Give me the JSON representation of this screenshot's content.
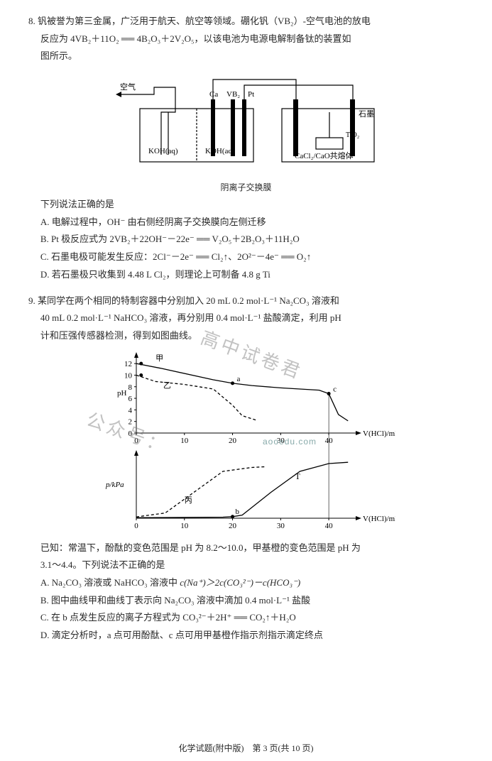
{
  "q8": {
    "num": "8.",
    "stem1": "钒被誉为第三金属，广泛用于航天、航空等领域。硼化钒（VB₂）-空气电池的放电",
    "stem2": "反应为 4VB₂＋11O₂ ══ 4B₂O₃＋2V₂O₅，以该电池为电源电解制备钛的装置如",
    "stem3": "图所示。",
    "diag": {
      "air": "空气",
      "Ca": "Ca",
      "VB2": "VB₂",
      "Pt": "Pt",
      "graphite": "石墨",
      "TiO2": "TiO₂",
      "koh": "KOH(aq)",
      "cacl2": "CaCl₂/CaO共熔体",
      "membrane": "阴离子交换膜",
      "stroke": "#000000",
      "bg": "#ffffff"
    },
    "lead": "下列说法正确的是",
    "optA": "A. 电解过程中，OH⁻ 由右侧经阴离子交换膜向左侧迁移",
    "optB": "B. Pt 极反应式为 2VB₂＋22OH⁻－22e⁻ ══ V₂O₅＋2B₂O₃＋11H₂O",
    "optC": "C. 石墨电极可能发生反应：2Cl⁻－2e⁻ ══ Cl₂↑、2O²⁻－4e⁻ ══ O₂↑",
    "optD": "D. 若石墨极只收集到 4.48 L Cl₂，则理论上可制备 4.8 g Ti"
  },
  "q9": {
    "num": "9.",
    "stem1": "某同学在两个相同的特制容器中分别加入 20 mL 0.2 mol·L⁻¹ Na₂CO₃ 溶液和",
    "stem2": "40 mL 0.2 mol·L⁻¹ NaHCO₃ 溶液，再分别用 0.4 mol·L⁻¹ 盐酸滴定，利用 pH",
    "stem3": "计和压强传感器检测，得到如图曲线。",
    "chart": {
      "bg": "#ffffff",
      "axis_color": "#000000",
      "grid_color": "#000000",
      "curve_color": "#000000",
      "font_size": 11,
      "ph_ylabel": "pH",
      "ph_yticks": [
        0,
        2,
        4,
        6,
        8,
        10,
        12
      ],
      "ph_x_label_right": "V(HCl)/mL",
      "p_ylabel": "p/kPa",
      "x_label_right": "V(HCl)/mL",
      "xticks": [
        0,
        10,
        20,
        30,
        40
      ],
      "labels": {
        "jia": "甲",
        "yi": "乙",
        "bing": "丙",
        "ding": "丁",
        "a": "a",
        "b": "b",
        "c": "c",
        "T": "T"
      },
      "series_jia": {
        "type": "line",
        "style": "solid",
        "data": [
          [
            0,
            12
          ],
          [
            5,
            11.2
          ],
          [
            16,
            9.2
          ],
          [
            20,
            8.6
          ],
          [
            24,
            8.2
          ],
          [
            30,
            7.8
          ],
          [
            38,
            7.4
          ],
          [
            40,
            6.8
          ],
          [
            42,
            3.2
          ],
          [
            44,
            2.1
          ]
        ]
      },
      "series_yi": {
        "type": "line",
        "style": "dashed",
        "data": [
          [
            0,
            10
          ],
          [
            4,
            8.9
          ],
          [
            10,
            8.4
          ],
          [
            16,
            7.6
          ],
          [
            20,
            4.8
          ],
          [
            22,
            3.0
          ],
          [
            25,
            2.2
          ]
        ]
      },
      "series_bing": {
        "type": "line",
        "style": "dashed",
        "p": true,
        "data": [
          [
            0,
            0.5
          ],
          [
            6,
            2
          ],
          [
            12,
            10
          ],
          [
            18,
            18
          ],
          [
            24,
            19.5
          ],
          [
            27,
            19.8
          ]
        ]
      },
      "series_ding": {
        "type": "line",
        "style": "solid",
        "p": true,
        "data": [
          [
            0,
            0.2
          ],
          [
            18,
            0.4
          ],
          [
            20,
            0.6
          ],
          [
            22,
            1.2
          ],
          [
            28,
            10
          ],
          [
            34,
            18
          ],
          [
            40,
            21
          ],
          [
            44,
            21.5
          ]
        ]
      },
      "p_ymax": 24
    },
    "known1": "已知：常温下，酚酞的变色范围是 pH 为 8.2～10.0，甲基橙的变色范围是 pH 为",
    "known2": "3.1～4.4。下列说法不正确的是",
    "optA_pre": "A. Na₂CO₃ 溶液或 NaHCO₃ 溶液中 ",
    "optA_mid": "c(Na⁺)＞2c(CO₃²⁻)－c(HCO₃⁻)",
    "optB": "B. 图中曲线甲和曲线丁表示向 Na₂CO₃ 溶液中滴加 0.4 mol·L⁻¹ 盐酸",
    "optC": "C. 在 b 点发生反应的离子方程式为 CO₃²⁻＋2H⁺ ══ CO₂↑＋H₂O",
    "optD": "D. 滴定分析时，a 点可用酚酞、c 点可用甲基橙作指示剂指示滴定终点"
  },
  "footer": "化学试题(附中版)　第 3 页(共 10 页)",
  "watermark1": "高中试卷君",
  "watermark2": "公众号：",
  "aooedu": "aooedu.com"
}
